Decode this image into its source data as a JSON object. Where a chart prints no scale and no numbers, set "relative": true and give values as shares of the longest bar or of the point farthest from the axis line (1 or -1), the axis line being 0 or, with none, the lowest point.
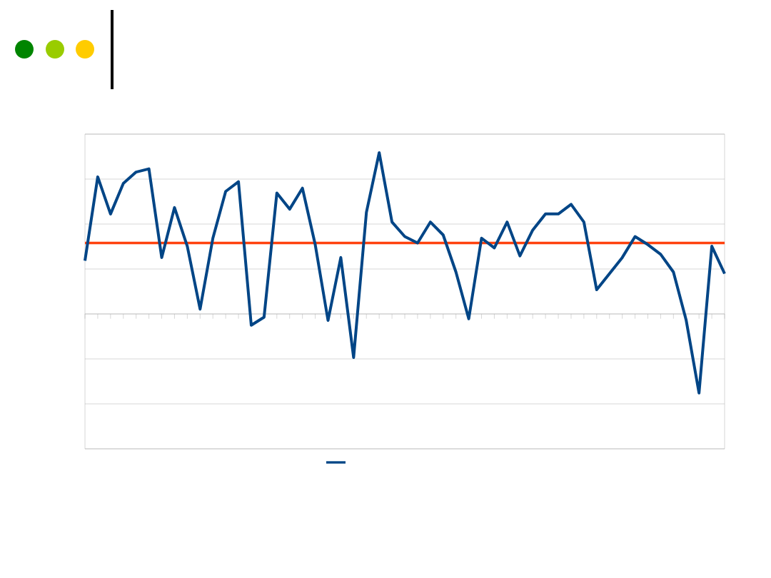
{
  "chart_data": {
    "type": "line",
    "relative": true,
    "categories": [
      null,
      null,
      null,
      null,
      null,
      null,
      null,
      null,
      null,
      null,
      null,
      null,
      null,
      null,
      null,
      null,
      null,
      null,
      null,
      null,
      null,
      null,
      null,
      null,
      null,
      null,
      null,
      null,
      null,
      null,
      null,
      null,
      null,
      null,
      null,
      null,
      null,
      null,
      null,
      null,
      null,
      null,
      null,
      null,
      null,
      null,
      null,
      null,
      null,
      null,
      null
    ],
    "series": [
      {
        "color": "#004586",
        "values": [
          0.33,
          0.85,
          0.62,
          0.81,
          0.88,
          0.9,
          0.35,
          0.66,
          0.42,
          0.03,
          0.47,
          0.76,
          0.82,
          -0.07,
          -0.02,
          0.75,
          0.65,
          0.78,
          0.43,
          -0.04,
          0.35,
          -0.27,
          0.63,
          1,
          0.57,
          0.48,
          0.44,
          0.57,
          0.49,
          0.26,
          -0.03,
          0.47,
          0.41,
          0.57,
          0.36,
          0.52,
          0.62,
          0.62,
          0.68,
          0.57,
          0.15,
          0.25,
          0.35,
          0.48,
          0.43,
          0.37,
          0.26,
          -0.04,
          -0.49,
          0.42,
          0.25
        ]
      }
    ],
    "ref_lines": [
      {
        "axis": "y",
        "value": 0.44,
        "color": "#ff420e"
      }
    ],
    "grid": "y",
    "marker": "none",
    "line_style": "solid"
  }
}
